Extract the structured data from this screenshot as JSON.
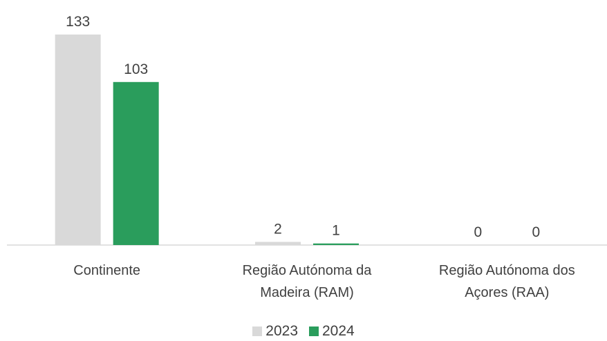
{
  "chart_data": {
    "type": "bar",
    "categories": [
      "Continente",
      "Região Autónoma da Madeira (RAM)",
      "Região Autónoma dos Açores (RAA)"
    ],
    "series": [
      {
        "name": "2023",
        "color": "#d9d9d9",
        "values": [
          133,
          2,
          0
        ]
      },
      {
        "name": "2024",
        "color": "#2a9d5c",
        "values": [
          103,
          1,
          0
        ]
      }
    ],
    "legend": "bottom"
  }
}
